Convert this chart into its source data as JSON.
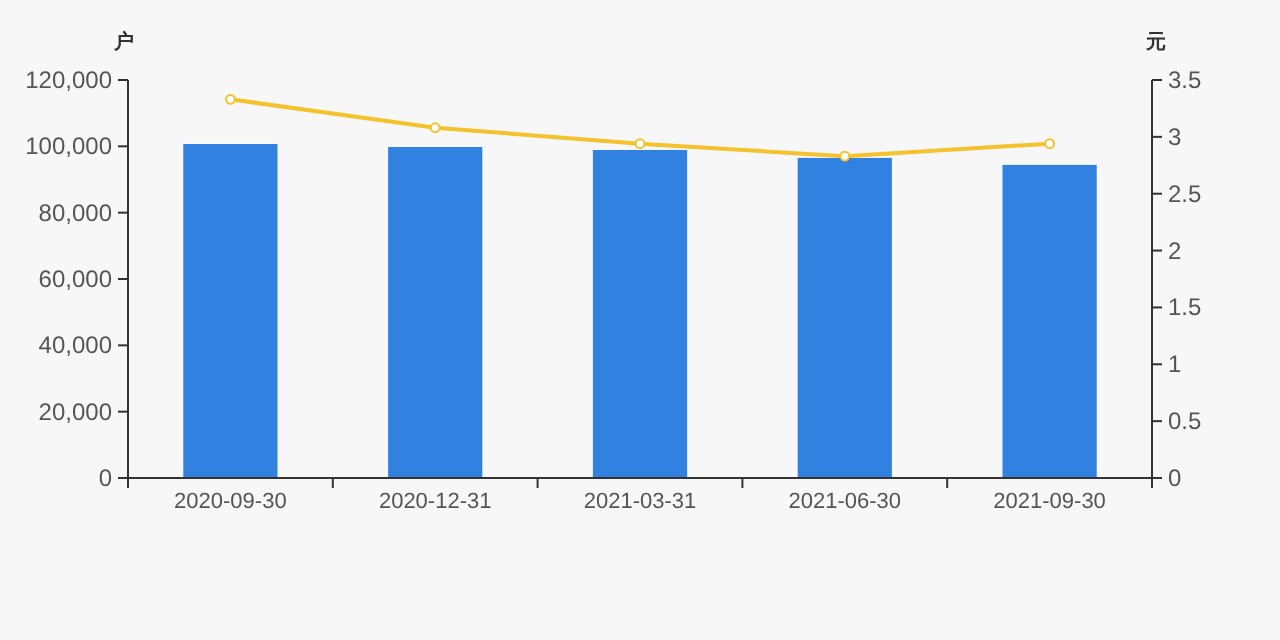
{
  "chart_data": {
    "type": "bar",
    "categories": [
      "2020-09-30",
      "2020-12-31",
      "2021-03-31",
      "2021-06-30",
      "2021-09-30"
    ],
    "ylabel": "户",
    "y2label": "元",
    "ylim": [
      0,
      120000
    ],
    "yticks": [
      0,
      {
        "value": 20000,
        "label": "20,000"
      },
      {
        "value": 40000,
        "label": "40,000"
      },
      {
        "value": 60000,
        "label": "60,000"
      },
      {
        "value": 80000,
        "label": "80,000"
      },
      {
        "value": 100000,
        "label": "100,000"
      },
      {
        "value": 120000,
        "label": "120,000"
      }
    ],
    "y2lim": [
      0,
      3.5
    ],
    "y2ticks": [
      0,
      0.5,
      1,
      1.5,
      2,
      2.5,
      3,
      3.5
    ],
    "grid": false,
    "series": [
      {
        "color": "#3182e0",
        "values": [
          100700,
          99800,
          98900,
          96500,
          94400
        ]
      },
      {
        "type": "line",
        "axis": "y2",
        "color": "#f4c22b",
        "marker": "circle",
        "line_style": "solid",
        "values": [
          3.33,
          3.08,
          2.94,
          2.83,
          2.94
        ]
      }
    ]
  }
}
